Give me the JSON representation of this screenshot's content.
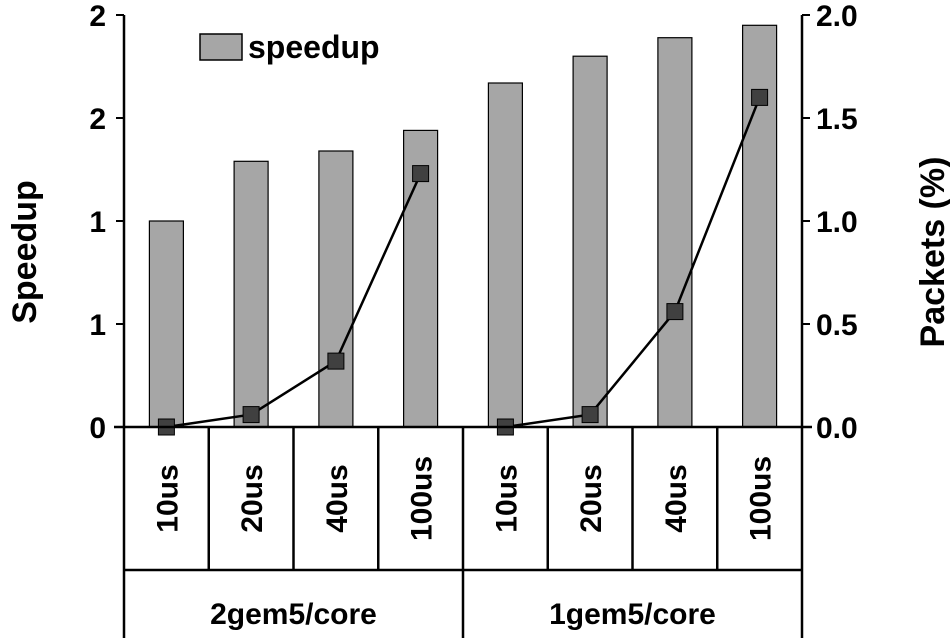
{
  "chart_data": {
    "type": "bar",
    "categories": [
      "10us",
      "20us",
      "40us",
      "100us",
      "10us",
      "20us",
      "40us",
      "100us"
    ],
    "groups": [
      {
        "label": "2gem5/core",
        "span": 4
      },
      {
        "label": "1gem5/core",
        "span": 4
      }
    ],
    "series": [
      {
        "name": "speedup",
        "kind": "bar",
        "axis": "left",
        "color": "#a6a6a6",
        "values": [
          1.0,
          1.29,
          1.34,
          1.44,
          1.67,
          1.8,
          1.89,
          1.95
        ]
      },
      {
        "kind": "line",
        "axis": "right",
        "color": "#000000",
        "marker_color": "#404040",
        "values": [
          0.0,
          0.06,
          0.32,
          1.23,
          0.0,
          0.06,
          0.56,
          1.6
        ]
      }
    ],
    "ylabel": "Speedup",
    "ylabel_right": "Packets (%)",
    "ylim": [
      0,
      2
    ],
    "ylim_right": [
      0,
      2.0
    ],
    "yticks": [
      {
        "value": 0,
        "label": "0"
      },
      {
        "value": 0.5,
        "label": "1"
      },
      {
        "value": 1.0,
        "label": "1"
      },
      {
        "value": 1.5,
        "label": "2"
      },
      {
        "value": 2.0,
        "label": "2"
      }
    ],
    "yticks_right": [
      {
        "value": 0,
        "label": "0.0"
      },
      {
        "value": 0.5,
        "label": "0.5"
      },
      {
        "value": 1.0,
        "label": "1.0"
      },
      {
        "value": 1.5,
        "label": "1.5"
      },
      {
        "value": 2.0,
        "label": "2.0"
      }
    ],
    "grid": false,
    "legend_position": "top-left"
  }
}
